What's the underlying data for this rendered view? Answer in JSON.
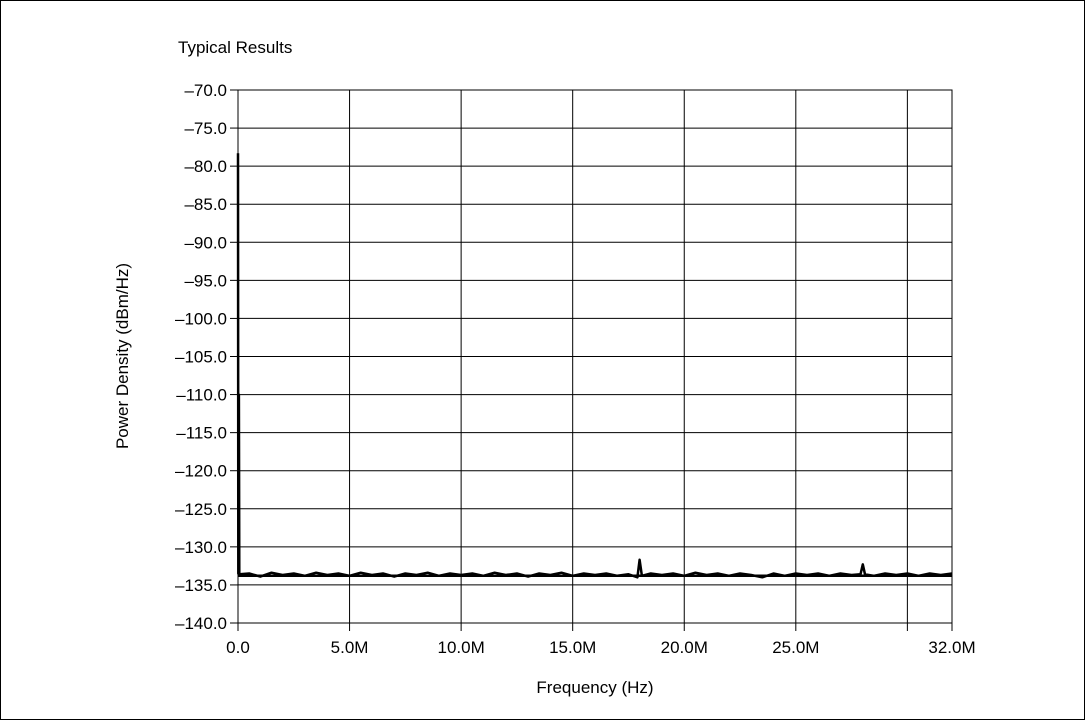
{
  "chart_data": {
    "type": "line",
    "title": "Typical Results",
    "xlabel": "Frequency (Hz)",
    "ylabel": "Power Density (dBm/Hz)",
    "xlim": [
      0,
      32000000
    ],
    "ylim": [
      -140,
      -70
    ],
    "x_ticks": [
      {
        "value": 0,
        "label": "0.0"
      },
      {
        "value": 5000000,
        "label": "5.0M"
      },
      {
        "value": 10000000,
        "label": "10.0M"
      },
      {
        "value": 15000000,
        "label": "15.0M"
      },
      {
        "value": 20000000,
        "label": "20.0M"
      },
      {
        "value": 25000000,
        "label": "25.0M"
      },
      {
        "value": 32000000,
        "label": "32.0M"
      }
    ],
    "x_minor_tick": 30000000,
    "y_ticks": [
      {
        "value": -70,
        "label": "–70.0"
      },
      {
        "value": -75,
        "label": "–75.0"
      },
      {
        "value": -80,
        "label": "–80.0"
      },
      {
        "value": -85,
        "label": "–85.0"
      },
      {
        "value": -90,
        "label": "–90.0"
      },
      {
        "value": -95,
        "label": "–95.0"
      },
      {
        "value": -100,
        "label": "–100.0"
      },
      {
        "value": -105,
        "label": "–105.0"
      },
      {
        "value": -110,
        "label": "–110.0"
      },
      {
        "value": -115,
        "label": "–115.0"
      },
      {
        "value": -120,
        "label": "–120.0"
      },
      {
        "value": -125,
        "label": "–125.0"
      },
      {
        "value": -130,
        "label": "–130.0"
      },
      {
        "value": -135,
        "label": "–135.0"
      },
      {
        "value": -140,
        "label": "–140.0"
      }
    ],
    "grid": true,
    "series": [
      {
        "color": "#000000",
        "points": [
          [
            0,
            -78.3
          ],
          [
            15000,
            -133.5
          ],
          [
            40000,
            -110.0
          ],
          [
            60000,
            -133.6
          ],
          [
            500000,
            -133.5
          ],
          [
            1000000,
            -133.9
          ],
          [
            1500000,
            -133.4
          ],
          [
            2000000,
            -133.7
          ],
          [
            2500000,
            -133.5
          ],
          [
            3000000,
            -133.8
          ],
          [
            3500000,
            -133.4
          ],
          [
            4000000,
            -133.7
          ],
          [
            4500000,
            -133.5
          ],
          [
            5000000,
            -133.8
          ],
          [
            5500000,
            -133.4
          ],
          [
            6000000,
            -133.7
          ],
          [
            6500000,
            -133.5
          ],
          [
            7000000,
            -133.9
          ],
          [
            7500000,
            -133.5
          ],
          [
            8000000,
            -133.7
          ],
          [
            8500000,
            -133.4
          ],
          [
            9000000,
            -133.8
          ],
          [
            9500000,
            -133.5
          ],
          [
            10000000,
            -133.7
          ],
          [
            10500000,
            -133.5
          ],
          [
            11000000,
            -133.8
          ],
          [
            11500000,
            -133.4
          ],
          [
            12000000,
            -133.7
          ],
          [
            12500000,
            -133.5
          ],
          [
            13000000,
            -133.9
          ],
          [
            13500000,
            -133.5
          ],
          [
            14000000,
            -133.7
          ],
          [
            14500000,
            -133.4
          ],
          [
            15000000,
            -133.8
          ],
          [
            15500000,
            -133.5
          ],
          [
            16000000,
            -133.7
          ],
          [
            16500000,
            -133.5
          ],
          [
            17000000,
            -133.8
          ],
          [
            17500000,
            -133.6
          ],
          [
            17900000,
            -134.0
          ],
          [
            18000000,
            -131.7
          ],
          [
            18100000,
            -133.8
          ],
          [
            18500000,
            -133.5
          ],
          [
            19000000,
            -133.7
          ],
          [
            19500000,
            -133.5
          ],
          [
            20000000,
            -133.8
          ],
          [
            20500000,
            -133.4
          ],
          [
            21000000,
            -133.7
          ],
          [
            21500000,
            -133.5
          ],
          [
            22000000,
            -133.8
          ],
          [
            22500000,
            -133.5
          ],
          [
            23000000,
            -133.7
          ],
          [
            23500000,
            -134.0
          ],
          [
            24000000,
            -133.5
          ],
          [
            24500000,
            -133.8
          ],
          [
            25000000,
            -133.5
          ],
          [
            25500000,
            -133.7
          ],
          [
            26000000,
            -133.5
          ],
          [
            26500000,
            -133.8
          ],
          [
            27000000,
            -133.5
          ],
          [
            27500000,
            -133.7
          ],
          [
            27900000,
            -133.6
          ],
          [
            28000000,
            -132.3
          ],
          [
            28100000,
            -133.6
          ],
          [
            28500000,
            -133.8
          ],
          [
            29000000,
            -133.5
          ],
          [
            29500000,
            -133.7
          ],
          [
            30000000,
            -133.5
          ],
          [
            30500000,
            -133.8
          ],
          [
            31000000,
            -133.5
          ],
          [
            31500000,
            -133.7
          ],
          [
            32000000,
            -133.5
          ]
        ]
      }
    ],
    "reference_line": {
      "value": -133.8,
      "color": "#000000"
    }
  }
}
